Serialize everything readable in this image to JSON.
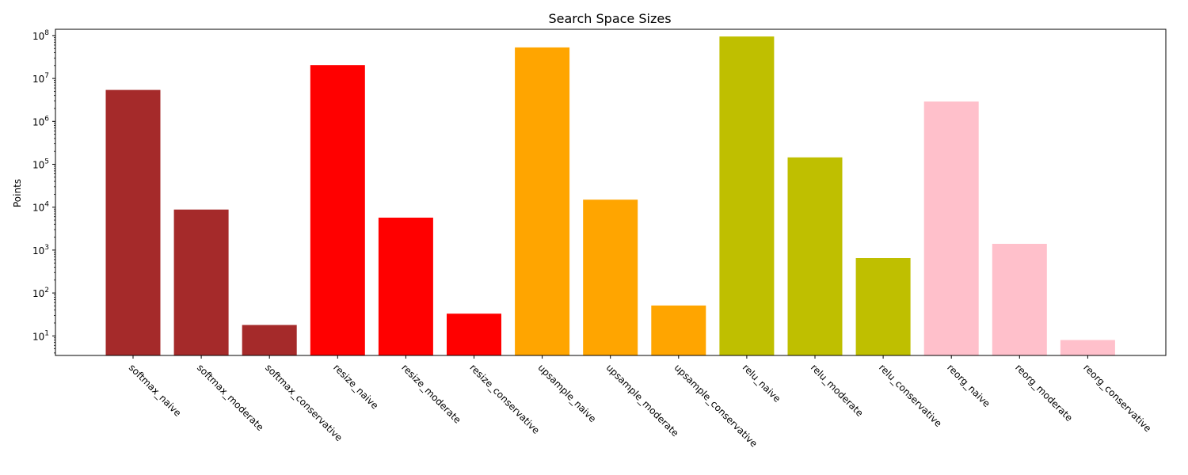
{
  "chart_data": {
    "type": "bar",
    "title": "Search Space Sizes",
    "xlabel": "",
    "ylabel": "Points",
    "yscale": "log",
    "ylim": [
      3.5,
      140000000
    ],
    "grid": false,
    "categories": [
      "softmax_naive",
      "softmax_moderate",
      "softmax_conservative",
      "resize_naive",
      "resize_moderate",
      "resize_conservative",
      "upsample_naive",
      "upsample_moderate",
      "upsample_conservative",
      "relu_naive",
      "relu_moderate",
      "relu_conservative",
      "reorg_naive",
      "reorg_moderate",
      "reorg_conservative"
    ],
    "values": [
      5400000,
      8800,
      18,
      20500000,
      5700,
      33,
      53000000,
      15000,
      51,
      95000000,
      145000,
      650,
      2900000,
      1400,
      8
    ],
    "bar_colors": [
      "#a52a2a",
      "#a52a2a",
      "#a52a2a",
      "#ff0000",
      "#ff0000",
      "#ff0000",
      "#ffa500",
      "#ffa500",
      "#ffa500",
      "#bfbf00",
      "#bfbf00",
      "#bfbf00",
      "#ffc0cb",
      "#ffc0cb",
      "#ffc0cb"
    ],
    "yticks": [
      {
        "value": 10,
        "base": "10",
        "exp": "1"
      },
      {
        "value": 100,
        "base": "10",
        "exp": "2"
      },
      {
        "value": 1000,
        "base": "10",
        "exp": "3"
      },
      {
        "value": 10000,
        "base": "10",
        "exp": "4"
      },
      {
        "value": 100000,
        "base": "10",
        "exp": "5"
      },
      {
        "value": 1000000,
        "base": "10",
        "exp": "6"
      },
      {
        "value": 10000000,
        "base": "10",
        "exp": "7"
      },
      {
        "value": 100000000,
        "base": "10",
        "exp": "8"
      }
    ]
  }
}
